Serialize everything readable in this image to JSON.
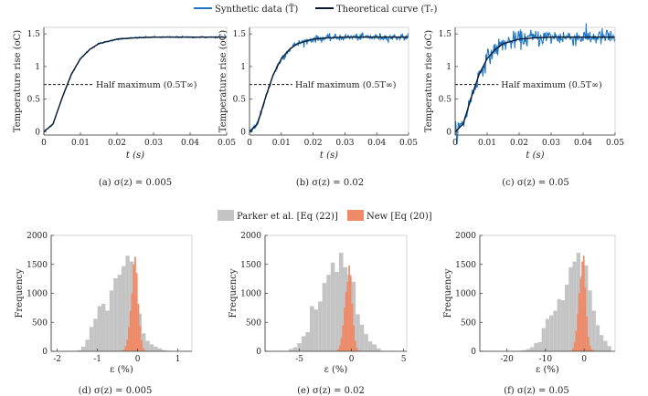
{
  "colors": {
    "synthetic": "#1f77c4",
    "theory": "#0b1a2e",
    "parker": "#c4c4c4",
    "new": "#ee8a68",
    "axis": "#333333"
  },
  "top_legend": {
    "synthetic": "Synthetic data (T̃)",
    "theory": "Theoretical curve (Tᵣ)"
  },
  "bottom_legend": {
    "parker": "Parker et al. [Eq (22)]",
    "new": "New [Eq (20)]"
  },
  "chart_data": [
    {
      "type": "line",
      "caption": "(a) σ(z) = 0.005",
      "noise": 0.005,
      "xlabel": "t (s)",
      "ylabel": "Temperature rise (oC)",
      "xlim": [
        0,
        0.05
      ],
      "ylim": [
        -0.05,
        1.6
      ],
      "xticks": [
        0,
        0.01,
        0.02,
        0.03,
        0.04,
        0.05
      ],
      "yticks": [
        0,
        0.5,
        1,
        1.5
      ],
      "x_tick_labels": [
        "0",
        "0.01",
        "0.02",
        "0.03",
        "0.04",
        "0.05"
      ],
      "y_tick_labels": [
        "0",
        "0.5",
        "1",
        "1.5"
      ],
      "t_inf": 1.45,
      "half_max": 0.725,
      "annotation": "Half maximum (0.5T∞)",
      "series": [
        {
          "name": "Synthetic data",
          "t": [
            0,
            0.0025,
            0.005,
            0.0075,
            0.01,
            0.0125,
            0.015,
            0.02,
            0.025,
            0.03,
            0.04,
            0.05
          ],
          "values": [
            0.0,
            0.12,
            0.52,
            0.88,
            1.12,
            1.26,
            1.35,
            1.42,
            1.44,
            1.45,
            1.45,
            1.45
          ]
        },
        {
          "name": "Theoretical curve",
          "t": [
            0,
            0.0025,
            0.005,
            0.0075,
            0.01,
            0.0125,
            0.015,
            0.02,
            0.025,
            0.03,
            0.04,
            0.05
          ],
          "values": [
            0.0,
            0.12,
            0.52,
            0.88,
            1.12,
            1.26,
            1.35,
            1.42,
            1.44,
            1.45,
            1.45,
            1.45
          ]
        }
      ]
    },
    {
      "type": "line",
      "caption": "(b) σ(z) = 0.02",
      "noise": 0.02,
      "xlabel": "t (s)",
      "ylabel": "Temperature rise (oC)",
      "xlim": [
        0,
        0.05
      ],
      "ylim": [
        -0.05,
        1.6
      ],
      "xticks": [
        0,
        0.01,
        0.02,
        0.03,
        0.04,
        0.05
      ],
      "yticks": [
        0,
        0.5,
        1,
        1.5
      ],
      "x_tick_labels": [
        "0",
        "0.01",
        "0.02",
        "0.03",
        "0.04",
        "0.05"
      ],
      "y_tick_labels": [
        "0",
        "0.5",
        "1",
        "1.5"
      ],
      "t_inf": 1.45,
      "half_max": 0.725,
      "annotation": "Half maximum (0.5T∞)",
      "series": [
        {
          "name": "Synthetic data",
          "t": [
            0,
            0.0025,
            0.005,
            0.0075,
            0.01,
            0.0125,
            0.015,
            0.02,
            0.025,
            0.03,
            0.04,
            0.05
          ],
          "values": [
            0.0,
            0.12,
            0.52,
            0.88,
            1.12,
            1.26,
            1.35,
            1.42,
            1.44,
            1.45,
            1.45,
            1.45
          ]
        },
        {
          "name": "Theoretical curve",
          "t": [
            0,
            0.0025,
            0.005,
            0.0075,
            0.01,
            0.0125,
            0.015,
            0.02,
            0.025,
            0.03,
            0.04,
            0.05
          ],
          "values": [
            0.0,
            0.12,
            0.52,
            0.88,
            1.12,
            1.26,
            1.35,
            1.42,
            1.44,
            1.45,
            1.45,
            1.45
          ]
        }
      ]
    },
    {
      "type": "line",
      "caption": "(c) σ(z) = 0.05",
      "noise": 0.05,
      "xlabel": "t (s)",
      "ylabel": "Temperature rise (oC)",
      "xlim": [
        0,
        0.05
      ],
      "ylim": [
        -0.05,
        1.6
      ],
      "xticks": [
        0,
        0.01,
        0.02,
        0.03,
        0.04,
        0.05
      ],
      "yticks": [
        0,
        0.5,
        1,
        1.5
      ],
      "x_tick_labels": [
        "0",
        "0.01",
        "0.02",
        "0.03",
        "0.04",
        "0.05"
      ],
      "y_tick_labels": [
        "0",
        "0.5",
        "1",
        "1.5"
      ],
      "t_inf": 1.45,
      "half_max": 0.725,
      "annotation": "Half maximum (0.5T∞)",
      "series": [
        {
          "name": "Synthetic data",
          "t": [
            0,
            0.0025,
            0.005,
            0.0075,
            0.01,
            0.0125,
            0.015,
            0.02,
            0.025,
            0.03,
            0.04,
            0.05
          ],
          "values": [
            0.0,
            0.12,
            0.52,
            0.88,
            1.12,
            1.26,
            1.35,
            1.42,
            1.44,
            1.45,
            1.45,
            1.45
          ]
        },
        {
          "name": "Theoretical curve",
          "t": [
            0,
            0.0025,
            0.005,
            0.0075,
            0.01,
            0.0125,
            0.015,
            0.02,
            0.025,
            0.03,
            0.04,
            0.05
          ],
          "values": [
            0.0,
            0.12,
            0.52,
            0.88,
            1.12,
            1.26,
            1.35,
            1.42,
            1.44,
            1.45,
            1.45,
            1.45
          ]
        }
      ]
    },
    {
      "type": "bar",
      "caption": "(d) σ(z) = 0.005",
      "xlabel": "ε (%)",
      "ylabel": "Frequency",
      "xlim": [
        -2.15,
        1.35
      ],
      "ylim": [
        0,
        2000
      ],
      "xticks": [
        -2,
        -1,
        0,
        1
      ],
      "yticks": [
        0,
        500,
        1000,
        1500,
        2000
      ],
      "x_tick_labels": [
        "-2",
        "-1",
        "0",
        "1"
      ],
      "y_tick_labels": [
        "0",
        "500",
        "1000",
        "1500",
        "2000"
      ],
      "series": [
        {
          "name": "Parker et al. [Eq (22)]",
          "bin_start": -1.5,
          "bin_width": 0.1,
          "values": [
            20,
            80,
            200,
            420,
            560,
            780,
            820,
            700,
            1050,
            1260,
            1320,
            1470,
            1650,
            1550,
            950,
            650,
            310,
            180,
            120,
            80,
            50,
            20,
            10,
            5
          ]
        },
        {
          "name": "New [Eq (20)]",
          "bin_start": -0.4,
          "bin_width": 0.04,
          "values": [
            10,
            30,
            90,
            200,
            420,
            700,
            1000,
            1500,
            1630,
            1350,
            820,
            440,
            190,
            60,
            15
          ]
        }
      ]
    },
    {
      "type": "bar",
      "caption": "(e) σ(z) = 0.02",
      "xlabel": "ε (%)",
      "ylabel": "Frequency",
      "xlim": [
        -8.3,
        5.3
      ],
      "ylim": [
        0,
        2000
      ],
      "xticks": [
        -5,
        0,
        5
      ],
      "yticks": [
        0,
        500,
        1000,
        1500,
        2000
      ],
      "x_tick_labels": [
        "-5",
        "0",
        "5"
      ],
      "y_tick_labels": [
        "0",
        "500",
        "1000",
        "1500",
        "2000"
      ],
      "series": [
        {
          "name": "Parker et al. [Eq (22)]",
          "bin_start": -6.0,
          "bin_width": 0.4,
          "values": [
            40,
            70,
            140,
            260,
            330,
            780,
            720,
            860,
            1180,
            1320,
            1530,
            1370,
            1700,
            1450,
            1320,
            1200,
            640,
            460,
            300,
            170,
            120,
            50
          ]
        },
        {
          "name": "New [Eq (20)]",
          "bin_start": -1.5,
          "bin_width": 0.15,
          "values": [
            10,
            40,
            100,
            230,
            450,
            750,
            1020,
            1200,
            1480,
            1300,
            820,
            450,
            180,
            60,
            20,
            5
          ]
        }
      ]
    },
    {
      "type": "bar",
      "caption": "(f) σ(z) = 0.05",
      "xlabel": "ε (%)",
      "ylabel": "Frequency",
      "xlim": [
        -27,
        8
      ],
      "ylim": [
        0,
        2000
      ],
      "xticks": [
        -20,
        -10,
        0
      ],
      "yticks": [
        0,
        500,
        1000,
        1500,
        2000
      ],
      "x_tick_labels": [
        "-20",
        "-10",
        "0"
      ],
      "y_tick_labels": [
        "0",
        "500",
        "1000",
        "1500",
        "2000"
      ],
      "series": [
        {
          "name": "Parker et al. [Eq (22)]",
          "bin_start": -17,
          "bin_width": 1.0,
          "values": [
            10,
            20,
            40,
            70,
            140,
            160,
            400,
            560,
            620,
            700,
            900,
            880,
            1150,
            1450,
            1550,
            1700,
            1300,
            1480,
            1050,
            700,
            450,
            280,
            180,
            90
          ]
        },
        {
          "name": "New [Eq (20)]",
          "bin_start": -3.5,
          "bin_width": 0.4,
          "values": [
            10,
            50,
            150,
            350,
            650,
            1000,
            1250,
            1550,
            1650,
            1100,
            600,
            250,
            100,
            40,
            20,
            10,
            5,
            0
          ]
        }
      ]
    }
  ]
}
